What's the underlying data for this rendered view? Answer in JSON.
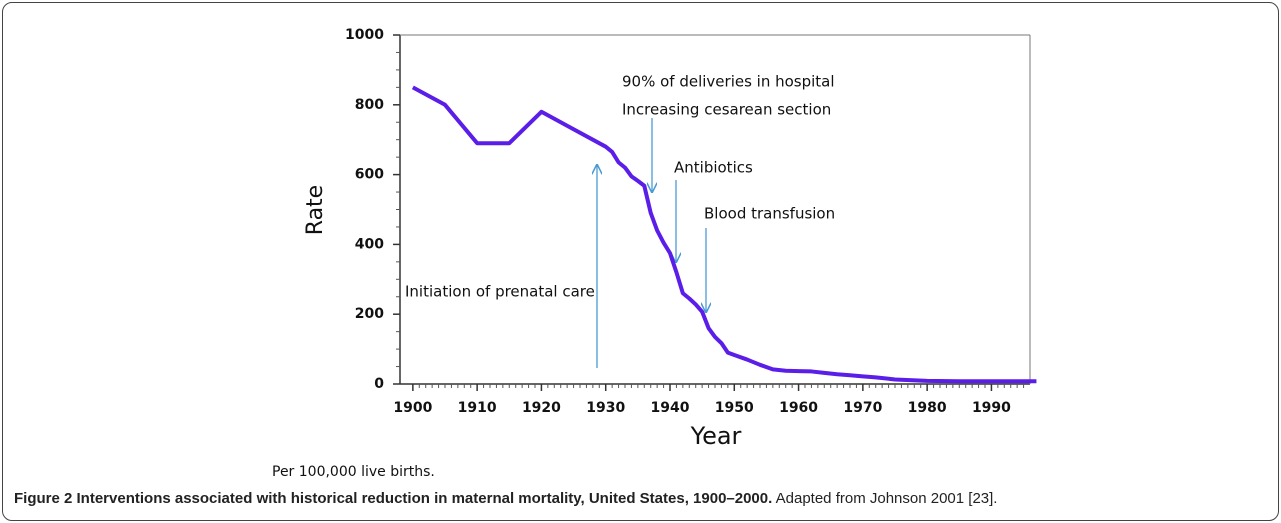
{
  "chart_data": {
    "type": "line",
    "xlabel": "Year",
    "ylabel": "Rate",
    "note": "Per 100,000 live births.",
    "x": [
      1900,
      1905,
      1910,
      1915,
      1920,
      1925,
      1930,
      1931,
      1932,
      1933,
      1934,
      1935,
      1936,
      1937,
      1938,
      1939,
      1940,
      1941,
      1942,
      1943,
      1944,
      1945,
      1946,
      1947,
      1948,
      1949,
      1950,
      1952,
      1954,
      1956,
      1958,
      1960,
      1962,
      1964,
      1966,
      1968,
      1970,
      1972,
      1975,
      1980,
      1985,
      1990,
      1997
    ],
    "series": [
      {
        "name": "Rate",
        "color": "#5a1ee8",
        "values": [
          850,
          800,
          690,
          690,
          780,
          730,
          680,
          665,
          635,
          620,
          595,
          582,
          568,
          490,
          440,
          405,
          375,
          320,
          260,
          245,
          228,
          207,
          160,
          135,
          117,
          90,
          83,
          70,
          55,
          42,
          38,
          37,
          36,
          32,
          28,
          25,
          22,
          19,
          13,
          9,
          8,
          8,
          8
        ]
      }
    ],
    "xlim": [
      1898,
      1996
    ],
    "xticks": [
      1900,
      1910,
      1920,
      1930,
      1940,
      1950,
      1960,
      1970,
      1980,
      1990
    ],
    "ylim": [
      0,
      1000
    ],
    "yticks": [
      0,
      200,
      400,
      600,
      800,
      1000
    ],
    "annotations": [
      "Initiation of prenatal care",
      "90% of deliveries in hospital",
      "Increasing cesarean section",
      "Antibiotics",
      "Blood transfusion"
    ]
  },
  "caption": {
    "bold": "Figure 2 Interventions associated with historical reduction in maternal mortality, United States, 1900–2000.",
    "text": " Adapted from Johnson 2001 [23]."
  }
}
